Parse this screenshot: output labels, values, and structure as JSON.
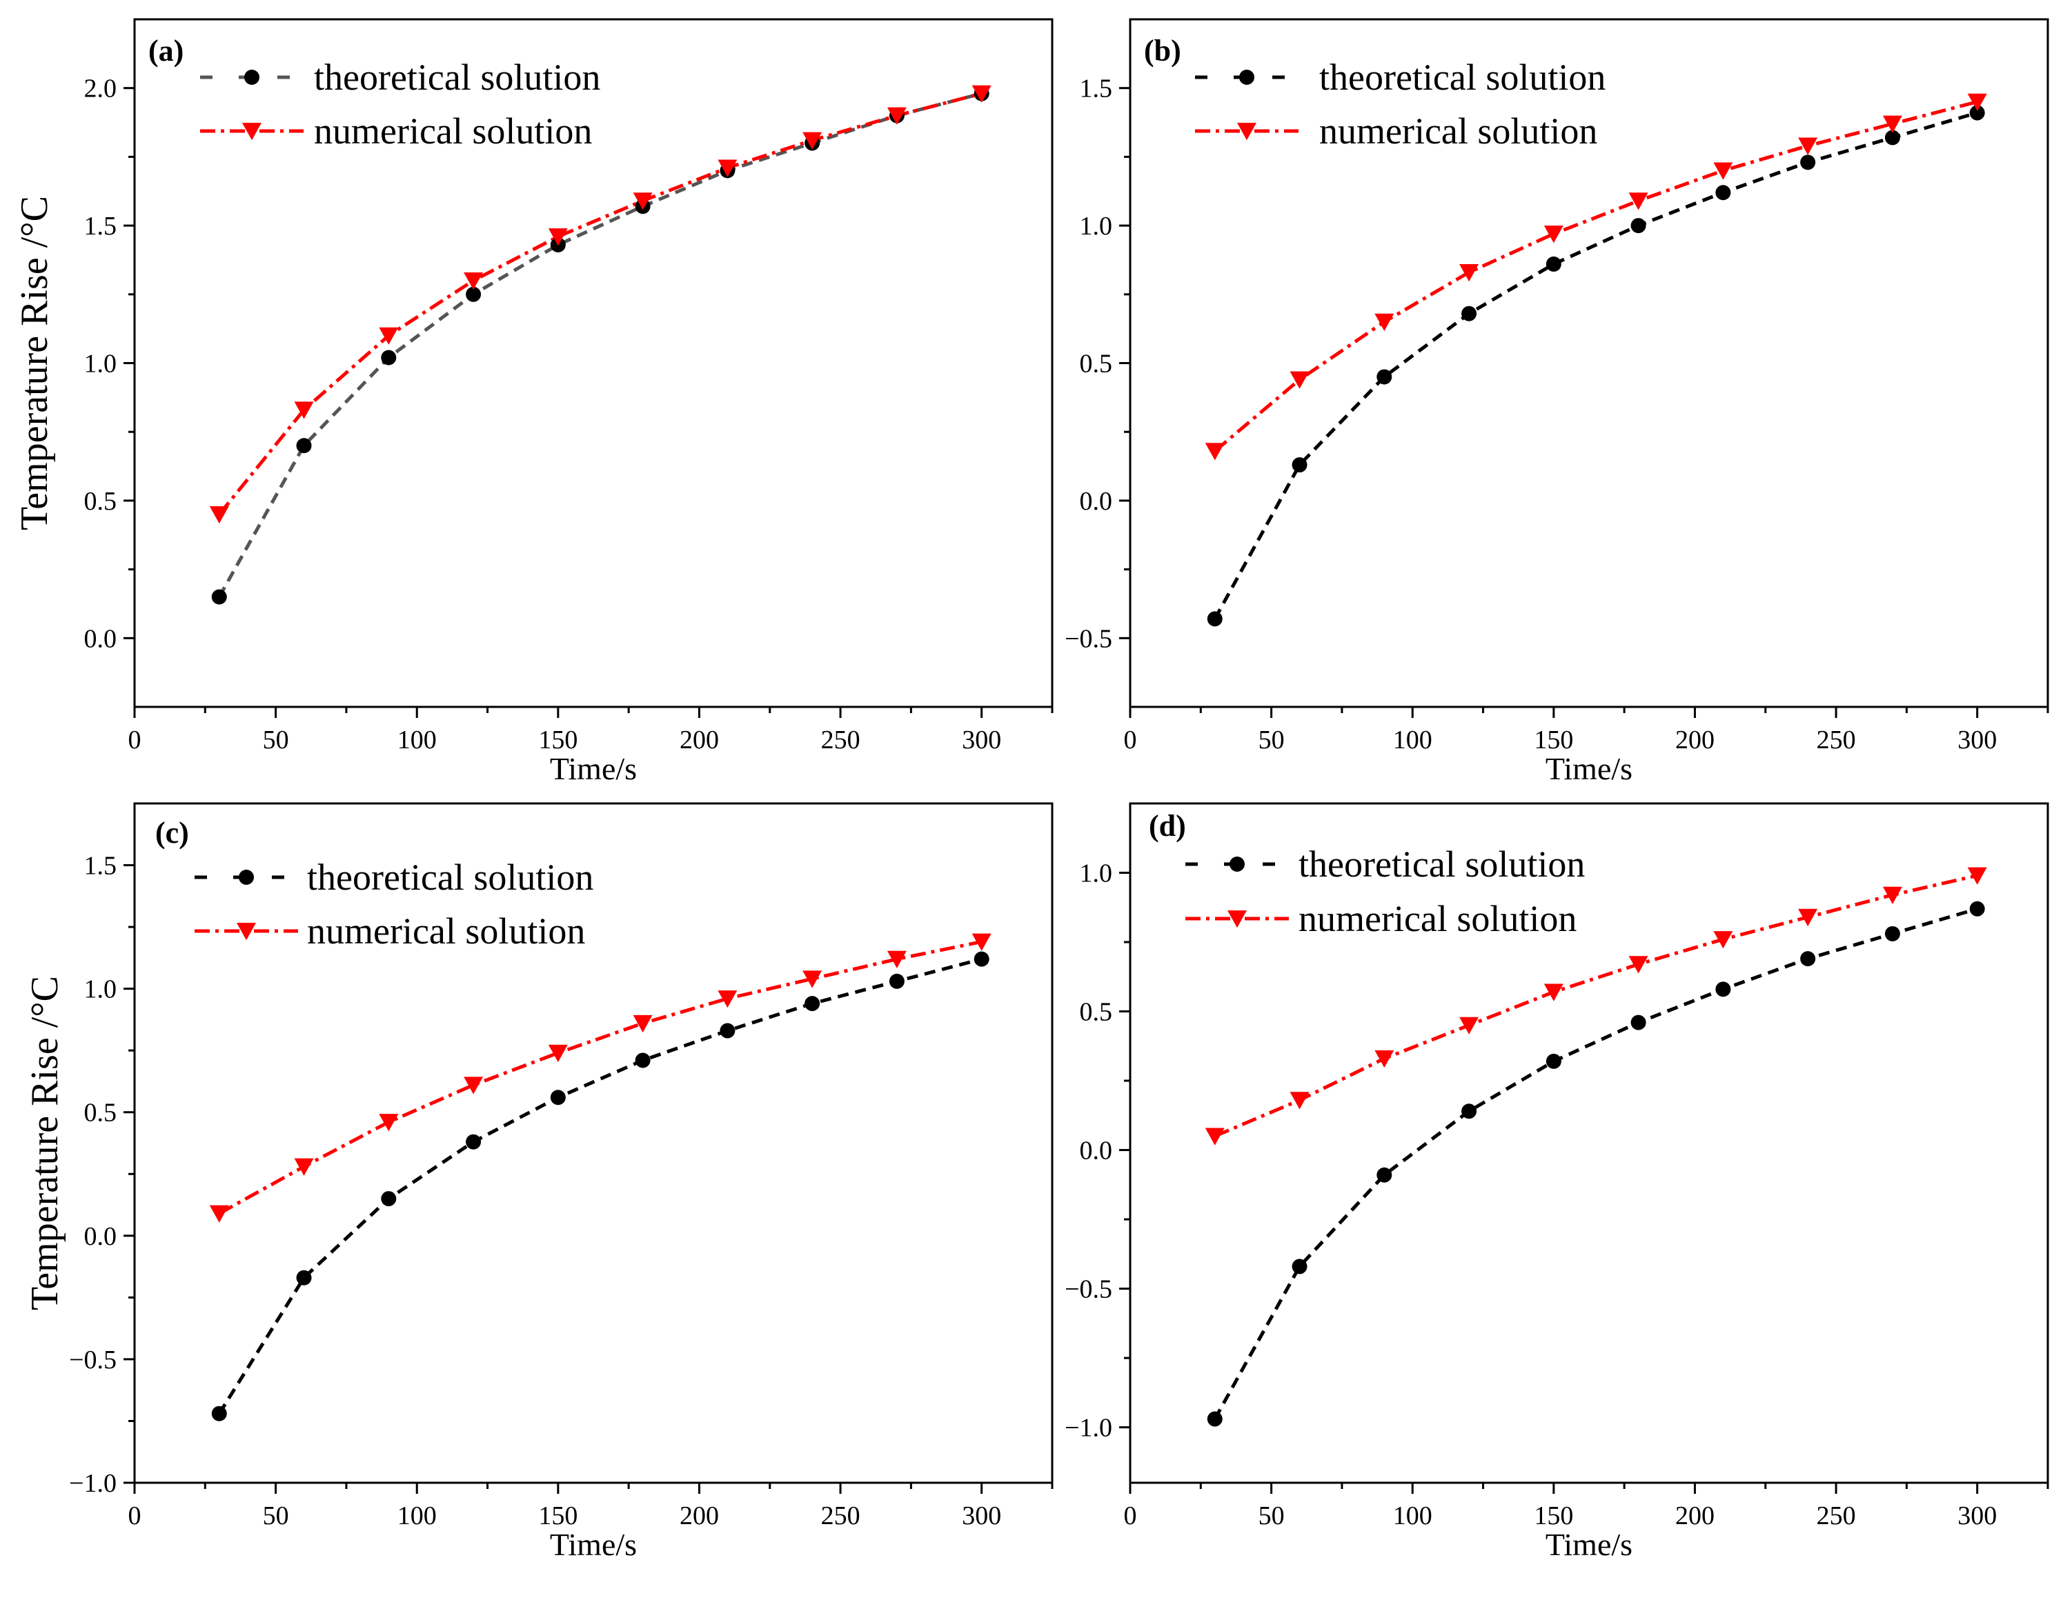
{
  "figure": {
    "legend": {
      "theoretical": "theoretical solution",
      "numerical": "numerical solution"
    },
    "colors": {
      "theoretical_dashes_a": "#555555",
      "theoretical": "#000000",
      "numerical": "#ff0000",
      "axes": "#000000"
    }
  },
  "chart_data": [
    {
      "type": "line",
      "panel": "(a)",
      "xlabel": "Time/s",
      "ylabel": "Temperature Rise /°C",
      "xlim": [
        0,
        325
      ],
      "ylim": [
        -0.25,
        2.25
      ],
      "xticks": [
        0,
        50,
        100,
        150,
        200,
        250,
        300
      ],
      "yticks": [
        0.0,
        0.5,
        1.0,
        1.5,
        2.0
      ],
      "ytick_labels": [
        "0.0",
        "0.5",
        "1.0",
        "1.5",
        "2.0"
      ],
      "x": [
        30,
        60,
        90,
        120,
        150,
        180,
        210,
        240,
        270,
        300
      ],
      "series": [
        {
          "name": "theoretical solution",
          "marker": "circle",
          "values": [
            0.15,
            0.7,
            1.02,
            1.25,
            1.43,
            1.57,
            1.7,
            1.8,
            1.9,
            1.98
          ]
        },
        {
          "name": "numerical solution",
          "marker": "triangle-down",
          "values": [
            0.45,
            0.83,
            1.1,
            1.3,
            1.46,
            1.59,
            1.71,
            1.81,
            1.9,
            1.98
          ]
        }
      ]
    },
    {
      "type": "line",
      "panel": "(b)",
      "xlabel": "Time/s",
      "ylabel": "",
      "xlim": [
        0,
        325
      ],
      "ylim": [
        -0.75,
        1.75
      ],
      "xticks": [
        0,
        50,
        100,
        150,
        200,
        250,
        300
      ],
      "yticks": [
        -0.5,
        0.0,
        0.5,
        1.0,
        1.5
      ],
      "ytick_labels": [
        "−0.5",
        "0.0",
        "0.5",
        "1.0",
        "1.5"
      ],
      "x": [
        30,
        60,
        90,
        120,
        150,
        180,
        210,
        240,
        270,
        300
      ],
      "series": [
        {
          "name": "theoretical solution",
          "marker": "circle",
          "values": [
            -0.43,
            0.13,
            0.45,
            0.68,
            0.86,
            1.0,
            1.12,
            1.23,
            1.32,
            1.41
          ]
        },
        {
          "name": "numerical solution",
          "marker": "triangle-down",
          "values": [
            0.18,
            0.44,
            0.65,
            0.83,
            0.97,
            1.09,
            1.2,
            1.29,
            1.37,
            1.45
          ]
        }
      ]
    },
    {
      "type": "line",
      "panel": "(c)",
      "xlabel": "Time/s",
      "ylabel": "Temperature Rise /°C",
      "xlim": [
        0,
        325
      ],
      "ylim": [
        -1.0,
        1.75
      ],
      "xticks": [
        0,
        50,
        100,
        150,
        200,
        250,
        300
      ],
      "yticks": [
        -1.0,
        -0.5,
        0.0,
        0.5,
        1.0,
        1.5
      ],
      "ytick_labels": [
        "−1.0",
        "−0.5",
        "0.0",
        "0.5",
        "1.0",
        "1.5"
      ],
      "x": [
        30,
        60,
        90,
        120,
        150,
        180,
        210,
        240,
        270,
        300
      ],
      "series": [
        {
          "name": "theoretical solution",
          "marker": "circle",
          "values": [
            -0.72,
            -0.17,
            0.15,
            0.38,
            0.56,
            0.71,
            0.83,
            0.94,
            1.03,
            1.12
          ]
        },
        {
          "name": "numerical solution",
          "marker": "triangle-down",
          "values": [
            0.09,
            0.28,
            0.46,
            0.61,
            0.74,
            0.86,
            0.96,
            1.04,
            1.12,
            1.19
          ]
        }
      ]
    },
    {
      "type": "line",
      "panel": "(d)",
      "xlabel": "Time/s",
      "ylabel": "",
      "xlim": [
        0,
        325
      ],
      "ylim": [
        -1.2,
        1.25
      ],
      "xticks": [
        0,
        50,
        100,
        150,
        200,
        250,
        300
      ],
      "yticks": [
        -1.0,
        -0.5,
        0.0,
        0.5,
        1.0
      ],
      "ytick_labels": [
        "−1.0",
        "−0.5",
        "0.0",
        "0.5",
        "1.0"
      ],
      "x": [
        30,
        60,
        90,
        120,
        150,
        180,
        210,
        240,
        270,
        300
      ],
      "series": [
        {
          "name": "theoretical solution",
          "marker": "circle",
          "values": [
            -0.97,
            -0.42,
            -0.09,
            0.14,
            0.32,
            0.46,
            0.58,
            0.69,
            0.78,
            0.87
          ]
        },
        {
          "name": "numerical solution",
          "marker": "triangle-down",
          "values": [
            0.05,
            0.18,
            0.33,
            0.45,
            0.57,
            0.67,
            0.76,
            0.84,
            0.92,
            0.99
          ]
        }
      ]
    }
  ]
}
